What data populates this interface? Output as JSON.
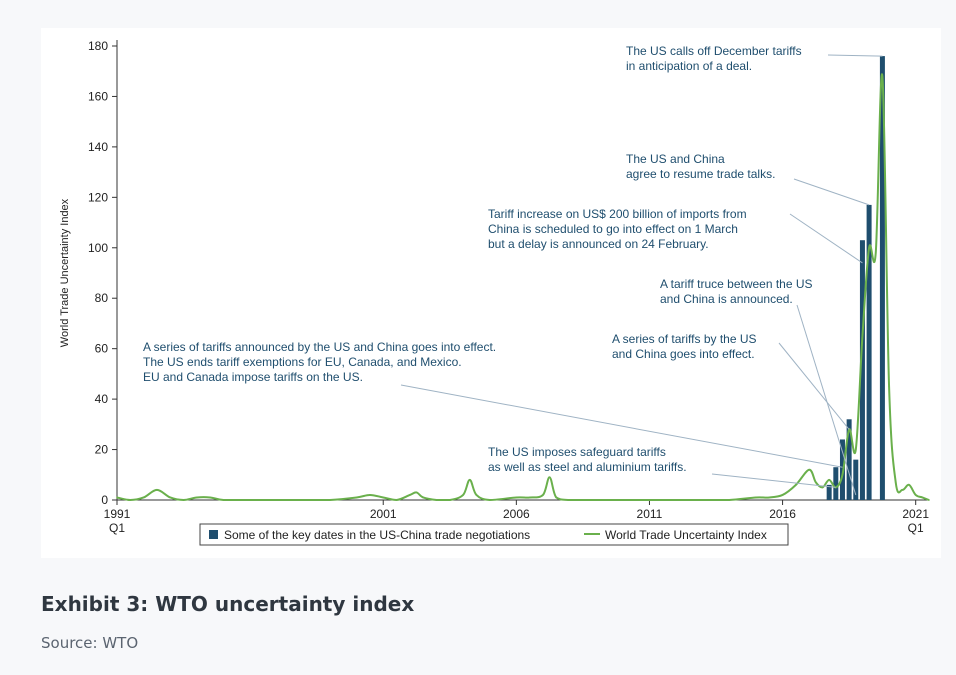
{
  "exhibit": {
    "caption": "Exhibit 3: WTO uncertainty index",
    "source": "Source: WTO"
  },
  "colors": {
    "line": "#6ab04c",
    "bar": "#1f4e6e",
    "annotation_text": "#1f4e6e",
    "leader": "#9fb3c4",
    "axis": "#333333"
  },
  "chart_data": {
    "type": "bar+line",
    "title": "",
    "ylabel": "World Trade Uncertainty Index",
    "xlabel": "",
    "ylim": [
      0,
      180
    ],
    "xlim": [
      1991.0,
      2021.5
    ],
    "y_ticks": [
      0,
      20,
      40,
      60,
      80,
      100,
      120,
      140,
      160,
      180
    ],
    "x_ticks": [
      {
        "value": 1991,
        "label": "1991",
        "sublabel": "Q1"
      },
      {
        "value": 2001,
        "label": "2001",
        "sublabel": ""
      },
      {
        "value": 2006,
        "label": "2006",
        "sublabel": ""
      },
      {
        "value": 2011,
        "label": "2011",
        "sublabel": ""
      },
      {
        "value": 2016,
        "label": "2016",
        "sublabel": ""
      },
      {
        "value": 2021,
        "label": "2021",
        "sublabel": "Q1"
      }
    ],
    "legend": {
      "placement": "bottom",
      "items": [
        {
          "label": "Some of the key dates in the US-China trade negotiations",
          "kind": "bar"
        },
        {
          "label": "World Trade Uncertainty Index",
          "kind": "line"
        }
      ]
    },
    "series": [
      {
        "name": "World Trade Uncertainty Index",
        "kind": "line",
        "x": [
          1991.0,
          1991.5,
          1992.0,
          1992.5,
          1993.0,
          1993.5,
          1994.0,
          1994.5,
          1995.0,
          1996.0,
          1997.0,
          1998.0,
          1999.0,
          2000.0,
          2000.5,
          2001.0,
          2001.5,
          2002.0,
          2002.25,
          2002.5,
          2003.0,
          2003.5,
          2004.0,
          2004.25,
          2004.5,
          2005.0,
          2006.0,
          2006.5,
          2007.0,
          2007.25,
          2007.5,
          2008.0,
          2009.0,
          2010.0,
          2011.0,
          2012.0,
          2013.0,
          2014.0,
          2015.0,
          2015.5,
          2016.0,
          2016.5,
          2017.0,
          2017.25,
          2017.5,
          2017.75,
          2018.0,
          2018.25,
          2018.5,
          2018.75,
          2019.0,
          2019.25,
          2019.5,
          2019.75,
          2020.0,
          2020.25,
          2020.5,
          2020.75,
          2021.0,
          2021.25,
          2021.5
        ],
        "y": [
          1,
          0,
          1,
          4,
          1,
          0,
          1,
          1,
          0,
          0,
          0,
          0,
          0,
          1,
          2,
          1,
          0,
          2,
          3,
          1,
          0,
          0,
          2,
          8,
          2,
          0,
          1,
          1,
          2,
          9,
          1,
          0,
          0,
          0,
          0,
          0,
          0,
          0,
          1,
          1,
          2,
          6,
          12,
          7,
          5,
          8,
          5,
          10,
          28,
          20,
          65,
          100,
          98,
          168,
          45,
          7,
          4,
          6,
          2,
          1,
          0
        ]
      },
      {
        "name": "Some of the key dates in the US-China trade negotiations",
        "kind": "bar",
        "x": [
          2017.75,
          2018.0,
          2018.25,
          2018.5,
          2018.75,
          2019.0,
          2019.25,
          2019.75
        ],
        "y": [
          6,
          13,
          24,
          32,
          16,
          103,
          117,
          176
        ]
      }
    ],
    "annotations": [
      {
        "lines": [
          "The US calls off December tariffs",
          "in anticipation of a deal."
        ],
        "target": {
          "x": 2019.75,
          "y": 176
        }
      },
      {
        "lines": [
          "The US and China",
          "agree to resume trade talks."
        ],
        "target": {
          "x": 2019.25,
          "y": 117
        }
      },
      {
        "lines": [
          "Tariff increase on US$ 200 billion of imports from",
          "China is scheduled to go into effect on 1 March",
          "but a delay is announced on 24 February."
        ],
        "target": {
          "x": 2019.0,
          "y": 94
        }
      },
      {
        "lines": [
          "A tariff truce between the US",
          "and China is announced."
        ],
        "target": {
          "x": 2018.75,
          "y": 2
        }
      },
      {
        "lines": [
          "A series of tariffs by the US",
          "and China goes into effect."
        ],
        "target": {
          "x": 2018.5,
          "y": 28
        }
      },
      {
        "lines": [
          "A series of tariffs announced by the US and China goes into effect.",
          "The US ends tariff exemptions for EU, Canada, and Mexico.",
          "EU and Canada impose tariffs on the US."
        ],
        "target": {
          "x": 2018.25,
          "y": 13
        }
      },
      {
        "lines": [
          "The US imposes safeguard tariffs",
          "as well as steel and aluminium tariffs."
        ],
        "target": {
          "x": 2018.0,
          "y": 5
        }
      }
    ]
  }
}
